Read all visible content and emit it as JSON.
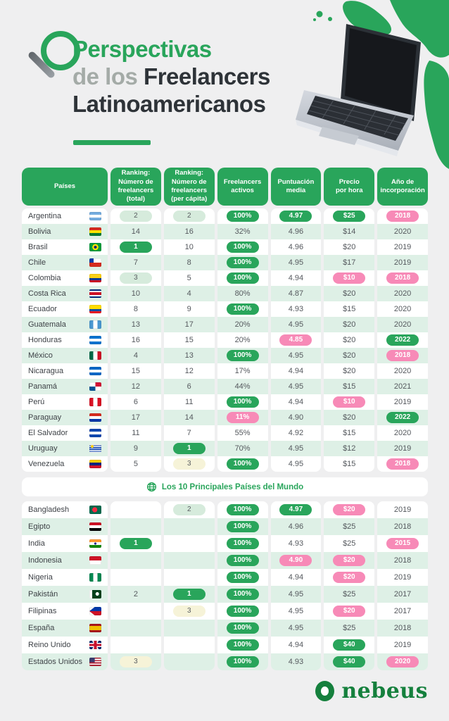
{
  "header": {
    "title_green": "Perspectivas",
    "title_gray": "de los",
    "title_dark1": "Freelancers",
    "title_dark2": "Latinoamericanos"
  },
  "divider": {
    "label": "Los 10 Principales Países del Mundo",
    "icon": "globe-icon"
  },
  "footer": {
    "brand": "nebeus"
  },
  "colors": {
    "accent_green": "#29a55b",
    "row_green": "#def0e6",
    "pill_pink": "#f78ab7",
    "pill_light_green": "#d6ebdc",
    "pill_cream": "#f6f3d8",
    "brand_green": "#15803d",
    "page_bg": "#efeff0",
    "title_dark": "#2e3338",
    "title_gray": "#a4aba7"
  },
  "chart_data": [
    {
      "type": "table",
      "section": "latinoamerica",
      "columns": [
        "Países",
        "Ranking:\nNúmero de\nfreelancers\n(total)",
        "Ranking:\nNúmero de\nfreelancers\n(per cápita)",
        "Freelancers\nactivos",
        "Puntuación\nmedia",
        "Precio\npor hora",
        "Año de\nincorporación"
      ],
      "rows": [
        [
          "Argentina",
          "2",
          "2",
          "100%",
          "4.97",
          "$25",
          "2018"
        ],
        [
          "Bolivia",
          "14",
          "16",
          "32%",
          "4.96",
          "$14",
          "2020"
        ],
        [
          "Brasil",
          "1",
          "10",
          "100%",
          "4.96",
          "$20",
          "2019"
        ],
        [
          "Chile",
          "7",
          "8",
          "100%",
          "4.95",
          "$17",
          "2019"
        ],
        [
          "Colombia",
          "3",
          "5",
          "100%",
          "4.94",
          "$10",
          "2018"
        ],
        [
          "Costa Rica",
          "10",
          "4",
          "80%",
          "4.87",
          "$20",
          "2020"
        ],
        [
          "Ecuador",
          "8",
          "9",
          "100%",
          "4.93",
          "$15",
          "2020"
        ],
        [
          "Guatemala",
          "13",
          "17",
          "20%",
          "4.95",
          "$20",
          "2020"
        ],
        [
          "Honduras",
          "16",
          "15",
          "20%",
          "4.85",
          "$20",
          "2022"
        ],
        [
          "México",
          "4",
          "13",
          "100%",
          "4.95",
          "$20",
          "2018"
        ],
        [
          "Nicaragua",
          "15",
          "12",
          "17%",
          "4.94",
          "$20",
          "2020"
        ],
        [
          "Panamá",
          "12",
          "6",
          "44%",
          "4.95",
          "$15",
          "2021"
        ],
        [
          "Perú",
          "6",
          "11",
          "100%",
          "4.94",
          "$10",
          "2019"
        ],
        [
          "Paraguay",
          "17",
          "14",
          "11%",
          "4.90",
          "$20",
          "2022"
        ],
        [
          "El Salvador",
          "11",
          "7",
          "55%",
          "4.92",
          "$15",
          "2020"
        ],
        [
          "Uruguay",
          "9",
          "1",
          "70%",
          "4.95",
          "$12",
          "2019"
        ],
        [
          "Venezuela",
          "5",
          "3",
          "100%",
          "4.95",
          "$15",
          "2018"
        ]
      ]
    },
    {
      "type": "table",
      "section": "mundo",
      "title": "Los 10 Principales Países del Mundo",
      "columns": [
        "Países",
        "Ranking:\nNúmero de\nfreelancers\n(total)",
        "Ranking:\nNúmero de\nfreelancers\n(per cápita)",
        "Freelancers\nactivos",
        "Puntuación\nmedia",
        "Precio\npor hora",
        "Año de\nincorporación"
      ],
      "rows": [
        [
          "Bangladesh",
          "",
          "2",
          "100%",
          "4.97",
          "$20",
          "2019"
        ],
        [
          "Egipto",
          "",
          "",
          "100%",
          "4.96",
          "$25",
          "2018"
        ],
        [
          "India",
          "1",
          "",
          "100%",
          "4.93",
          "$25",
          "2015"
        ],
        [
          "Indonesia",
          "",
          "",
          "100%",
          "4.90",
          "$20",
          "2018"
        ],
        [
          "Nigeria",
          "",
          "",
          "100%",
          "4.94",
          "$20",
          "2019"
        ],
        [
          "Pakistán",
          "2",
          "1",
          "100%",
          "4.95",
          "$25",
          "2017"
        ],
        [
          "Filipinas",
          "",
          "3",
          "100%",
          "4.95",
          "$20",
          "2017"
        ],
        [
          "España",
          "",
          "",
          "100%",
          "4.95",
          "$25",
          "2018"
        ],
        [
          "Reino Unido",
          "",
          "",
          "100%",
          "4.94",
          "$40",
          "2019"
        ],
        [
          "Estados Unidos",
          "3",
          "",
          "100%",
          "4.93",
          "$40",
          "2020"
        ]
      ]
    }
  ],
  "cell_styles": {
    "latam": [
      [
        "lightgreen",
        "lightgreen",
        "green",
        "green",
        "green",
        "pink"
      ],
      [
        "plain",
        "plain",
        "plain",
        "plain",
        "plain",
        "plain"
      ],
      [
        "green",
        "plain",
        "green",
        "plain",
        "plain",
        "plain"
      ],
      [
        "plain",
        "plain",
        "green",
        "plain",
        "plain",
        "plain"
      ],
      [
        "lightgreen",
        "plain",
        "green",
        "plain",
        "pink",
        "pink"
      ],
      [
        "plain",
        "plain",
        "plain",
        "plain",
        "plain",
        "plain"
      ],
      [
        "plain",
        "plain",
        "green",
        "plain",
        "plain",
        "plain"
      ],
      [
        "plain",
        "plain",
        "plain",
        "plain",
        "plain",
        "plain"
      ],
      [
        "plain",
        "plain",
        "plain",
        "pink",
        "plain",
        "green"
      ],
      [
        "plain",
        "plain",
        "green",
        "plain",
        "plain",
        "pink"
      ],
      [
        "plain",
        "plain",
        "plain",
        "plain",
        "plain",
        "plain"
      ],
      [
        "plain",
        "plain",
        "plain",
        "plain",
        "plain",
        "plain"
      ],
      [
        "plain",
        "plain",
        "green",
        "plain",
        "pink",
        "plain"
      ],
      [
        "plain",
        "plain",
        "pink",
        "plain",
        "plain",
        "green"
      ],
      [
        "plain",
        "plain",
        "plain",
        "plain",
        "plain",
        "plain"
      ],
      [
        "plain",
        "green",
        "plain",
        "plain",
        "plain",
        "plain"
      ],
      [
        "plain",
        "cream",
        "green",
        "plain",
        "plain",
        "pink"
      ]
    ],
    "world": [
      [
        "none",
        "lightgreen",
        "green",
        "green",
        "pink",
        "plain"
      ],
      [
        "none",
        "none",
        "green",
        "plain",
        "plain",
        "plain"
      ],
      [
        "green",
        "none",
        "green",
        "plain",
        "plain",
        "pink"
      ],
      [
        "none",
        "none",
        "green",
        "pink",
        "pink",
        "plain"
      ],
      [
        "none",
        "none",
        "green",
        "plain",
        "pink",
        "plain"
      ],
      [
        "plain",
        "green",
        "green",
        "plain",
        "plain",
        "plain"
      ],
      [
        "none",
        "cream",
        "green",
        "plain",
        "pink",
        "plain"
      ],
      [
        "none",
        "none",
        "green",
        "plain",
        "plain",
        "plain"
      ],
      [
        "none",
        "none",
        "green",
        "plain",
        "green",
        "plain"
      ],
      [
        "cream",
        "none",
        "green",
        "plain",
        "green",
        "pink"
      ]
    ]
  },
  "flags": {
    "latam": [
      "ar",
      "bo",
      "br",
      "cl",
      "co",
      "cr",
      "ec",
      "gt",
      "hn",
      "mx",
      "ni",
      "pa",
      "pe",
      "py",
      "sv",
      "uy",
      "ve"
    ],
    "world": [
      "bd",
      "eg",
      "in",
      "id",
      "ng",
      "pk",
      "ph",
      "es",
      "gb",
      "us"
    ]
  }
}
